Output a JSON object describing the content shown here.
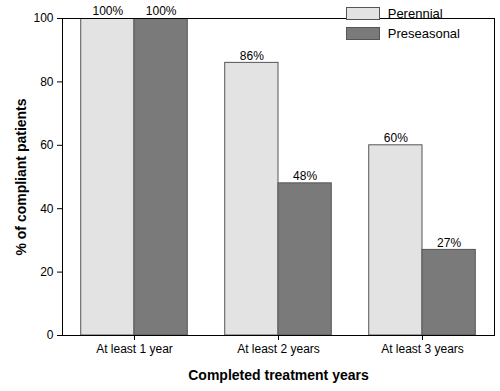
{
  "chart_data": {
    "type": "bar",
    "categories": [
      "At least 1 year",
      "At least 2 years",
      "At least 3 years"
    ],
    "series": [
      {
        "name": "Perennial",
        "color": "#e3e3e3",
        "values": [
          100,
          86,
          60
        ],
        "value_labels": [
          "100%",
          "86%",
          "60%"
        ]
      },
      {
        "name": "Preseasonal",
        "color": "#7a7a7a",
        "values": [
          100,
          48,
          27
        ],
        "value_labels": [
          "100%",
          "48%",
          "27%"
        ]
      }
    ],
    "x_label": "Completed treatment years",
    "y_label": "% of compliant patients",
    "ylim": [
      0,
      100
    ],
    "yticks": [
      0,
      20,
      40,
      60,
      80,
      100
    ],
    "data_labels": true,
    "legend": "top-right"
  }
}
